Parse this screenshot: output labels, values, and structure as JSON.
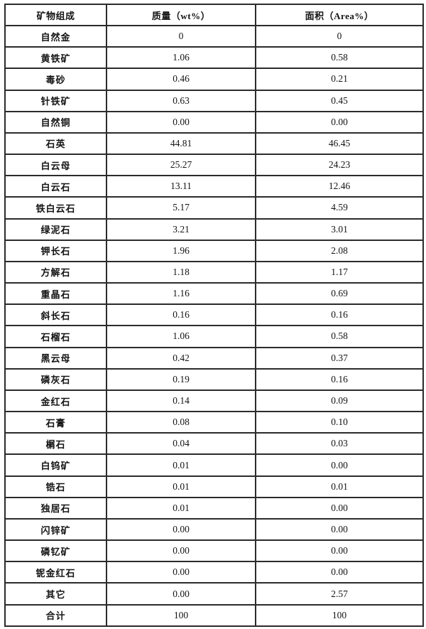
{
  "table": {
    "headers": [
      "矿物组成",
      "质量（wt%）",
      "面积（Area%）"
    ],
    "rows": [
      {
        "mineral": "自然金",
        "wt": "0",
        "area": "0"
      },
      {
        "mineral": "黄铁矿",
        "wt": "1.06",
        "area": "0.58"
      },
      {
        "mineral": "毒砂",
        "wt": "0.46",
        "area": "0.21"
      },
      {
        "mineral": "针铁矿",
        "wt": "0.63",
        "area": "0.45"
      },
      {
        "mineral": "自然铜",
        "wt": "0.00",
        "area": "0.00"
      },
      {
        "mineral": "石英",
        "wt": "44.81",
        "area": "46.45"
      },
      {
        "mineral": "白云母",
        "wt": "25.27",
        "area": "24.23"
      },
      {
        "mineral": "白云石",
        "wt": "13.11",
        "area": "12.46"
      },
      {
        "mineral": "铁白云石",
        "wt": "5.17",
        "area": "4.59"
      },
      {
        "mineral": "绿泥石",
        "wt": "3.21",
        "area": "3.01"
      },
      {
        "mineral": "钾长石",
        "wt": "1.96",
        "area": "2.08"
      },
      {
        "mineral": "方解石",
        "wt": "1.18",
        "area": "1.17"
      },
      {
        "mineral": "重晶石",
        "wt": "1.16",
        "area": "0.69"
      },
      {
        "mineral": "斜长石",
        "wt": "0.16",
        "area": "0.16"
      },
      {
        "mineral": "石榴石",
        "wt": "1.06",
        "area": "0.58"
      },
      {
        "mineral": "黑云母",
        "wt": "0.42",
        "area": "0.37"
      },
      {
        "mineral": "磷灰石",
        "wt": "0.19",
        "area": "0.16"
      },
      {
        "mineral": "金红石",
        "wt": "0.14",
        "area": "0.09"
      },
      {
        "mineral": "石膏",
        "wt": "0.08",
        "area": "0.10"
      },
      {
        "mineral": "榍石",
        "wt": "0.04",
        "area": "0.03"
      },
      {
        "mineral": "白钨矿",
        "wt": "0.01",
        "area": "0.00"
      },
      {
        "mineral": "锆石",
        "wt": "0.01",
        "area": "0.01"
      },
      {
        "mineral": "独居石",
        "wt": "0.01",
        "area": "0.00"
      },
      {
        "mineral": "闪锌矿",
        "wt": "0.00",
        "area": "0.00"
      },
      {
        "mineral": "磷钇矿",
        "wt": "0.00",
        "area": "0.00"
      },
      {
        "mineral": "铌金红石",
        "wt": "0.00",
        "area": "0.00"
      },
      {
        "mineral": "其它",
        "wt": "0.00",
        "area": "2.57"
      },
      {
        "mineral": "合计",
        "wt": "100",
        "area": "100"
      }
    ]
  }
}
